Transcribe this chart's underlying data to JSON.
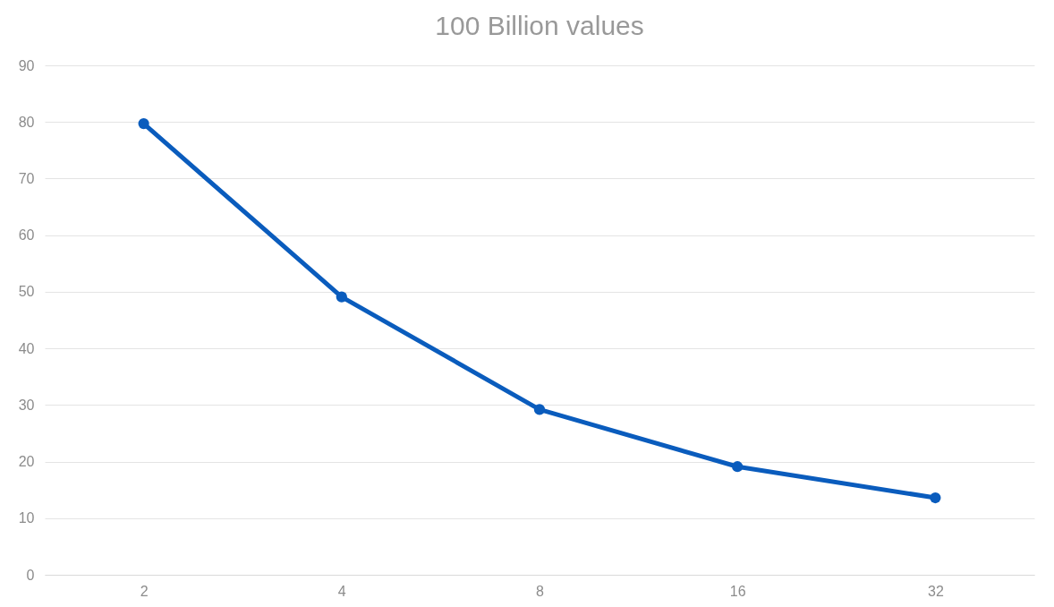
{
  "chart_data": {
    "type": "line",
    "title": "100 Billion values",
    "categories": [
      "2",
      "4",
      "8",
      "16",
      "32"
    ],
    "series": [
      {
        "color": "#0a5cbd",
        "values": [
          79.7,
          49.1,
          29.2,
          19.1,
          13.6
        ]
      }
    ],
    "ylim": [
      0,
      90
    ],
    "yticks": [
      0,
      10,
      20,
      30,
      40,
      50,
      60,
      70,
      80,
      90
    ],
    "grid": "y",
    "marker": "circle",
    "line_style": "solid"
  }
}
